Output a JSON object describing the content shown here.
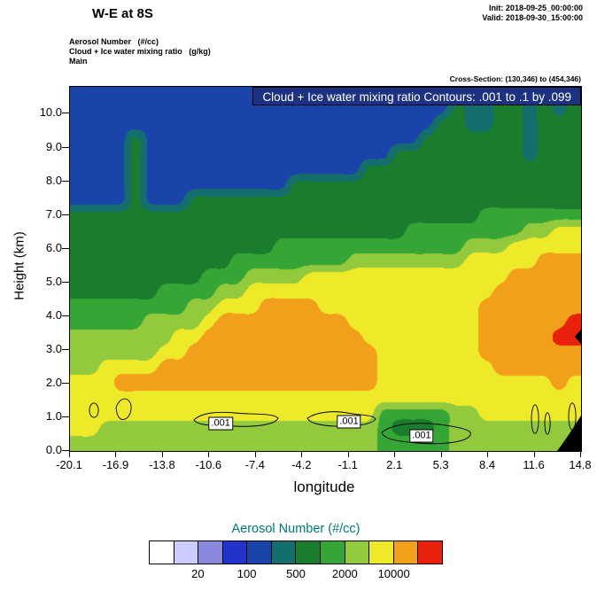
{
  "header": {
    "title": "W-E at 8S",
    "init": "Init: 2018-09-25_00:00:00",
    "valid": "Valid: 2018-09-30_15:00:00",
    "field_lines": [
      "Aerosol Number   (#/cc)",
      "Cloud + Ice water mixing ratio   (g/kg)",
      "Main"
    ],
    "cross_section": "Cross-Section: (130,346) to (454,346)"
  },
  "banner": {
    "text": "Cloud + Ice water mixing ratio Contours: .001 to .1 by .099",
    "bg": "#1e3282",
    "fg": "#ffffff"
  },
  "axes": {
    "ylabel": "Height (km)",
    "xlabel": "longitude",
    "ytick_labels": [
      "0.0",
      "1.0",
      "2.0",
      "3.0",
      "4.0",
      "5.0",
      "6.0",
      "7.0",
      "8.0",
      "9.0",
      "10.0"
    ],
    "xtick_labels": [
      "-20.1",
      "-16.9",
      "-13.8",
      "-10.6",
      "-7.4",
      "-4.2",
      "-1.1",
      "2.1",
      "5.3",
      "8.4",
      "11.6",
      "14.8"
    ]
  },
  "legend": {
    "title": "Aerosol Number  (#/cc)",
    "title_color": "#007878",
    "colors": [
      "#ffffff",
      "#ccccff",
      "#8888dd",
      "#2233cc",
      "#1a44aa",
      "#156e6e",
      "#1a7d2e",
      "#35a535",
      "#93c93c",
      "#eeea2a",
      "#f2a01c",
      "#e8200c"
    ],
    "labels": [
      {
        "text": "20",
        "boundary": 2
      },
      {
        "text": "100",
        "boundary": 4
      },
      {
        "text": "500",
        "boundary": 6
      },
      {
        "text": "2000",
        "boundary": 8
      },
      {
        "text": "10000",
        "boundary": 10
      }
    ]
  },
  "contour_labels": [
    {
      "text": ".001",
      "left_pct": 29.5,
      "top_pct": 92.5
    },
    {
      "text": ".001",
      "left_pct": 54.6,
      "top_pct": 92.0
    },
    {
      "text": ".001",
      "left_pct": 68.8,
      "top_pct": 95.8
    }
  ],
  "chart_data": {
    "type": "filled-contour-cross-section",
    "title": "W-E at 8S",
    "fill_field": "Aerosol Number (#/cc)",
    "line_field": "Cloud + Ice water mixing ratio (g/kg)",
    "line_contour_levels": [
      0.001,
      0.1
    ],
    "colorbar_labeled_values": [
      20,
      100,
      500,
      2000,
      10000
    ],
    "x_axis": {
      "label": "longitude",
      "range": [
        -20.1,
        14.8
      ],
      "ticks": [
        -20.1,
        -16.9,
        -13.8,
        -10.6,
        -7.4,
        -4.2,
        -1.1,
        2.1,
        5.3,
        8.4,
        11.6,
        14.8
      ]
    },
    "y_axis": {
      "label": "Height (km)",
      "range": [
        0,
        10.8
      ],
      "ticks": [
        0,
        1,
        2,
        3,
        4,
        5,
        6,
        7,
        8,
        9,
        10
      ]
    },
    "grid_note": "Coarse 35x24 field of colorbar level indices; rows run top (10.8 km) to bottom (0 km), columns run -20.1 to 14.8 deg longitude. Chars 4..9,A,B map to palette indices 4..11 (navy, teal, dark green, green, light green, yellow, orange, red).",
    "grid_levels": [
      "44444444444444444444444444455665656",
      "44444444444444444444444444655665656",
      "44444444444444444444444446655665666",
      "44446444444444444444444466666665666",
      "44446444444444444444446666666665666",
      "44446444444444444444666666666666666",
      "44446444444444466666666666666666666",
      "44446444666666666666666666666666666",
      "66666666666666666666666666667777777",
      "66666666666666666666666777777778899",
      "66666666666666777777777777788899999",
      "66666666666777777778888888899999AAA",
      "666666666777888899999999999999AAAAA",
      "66666677778899999999999999999AAAAAA",
      "7777777788999AAAA99999999999AAAAAAA",
      "7777788889AAAAAAAAA999999999AAAAAAB",
      "888888899AAAAAAAAAAA99999999AAAAABB",
      "88888899AAAAAAAAAAAAA9999999AAAAAAA",
      "889999AAAAAAAAAAAAAAA99999999AAAAAA",
      "999AAAAAAAAAAAAAAAAAA999999999999A9",
      "99999999999999999999999999999999999",
      "99999999999999999999977777889999999",
      "99888888888888888888876667888888888",
      "88888888888888888888877777888888888"
    ],
    "terrain_polygons": [
      "M550 411 L577 411 L577 371 C569 384 559 399 550 411 Z",
      "M577 274 L570 282 L577 290 Z"
    ],
    "cloud_contour_paths": [
      "M22 365 a5 8 0 1 0 10.1 0 a5 8 0 1 0 -10.1 0",
      "M52 362 c3 -9 10 -13 15 -7 c4 5 2 15 -3 19 c-6 4 -11 0 -12 -12 z",
      "M140 376 c8 -8 26 -10 46 -8 c20 2 44 0 49 6 c-4 8 -28 10 -50 9 c-22 -1 -40 0 -45 -7 z",
      "M268 374 c10 -7 30 -9 45 -6 c15 3 30 2 32 7 c-6 7 -25 8 -42 8 c-17 0 -32 -3 -35 -9 z",
      "M352 390 c12 -10 40 -12 65 -9 c22 3 38 6 35 12 c-5 9 -35 11 -60 9 c-25 -2 -38 -5 -40 -12 z",
      "M521 375 a4 16 0 1 0 8.1 0 a4 16 0 1 0 -8.1 0",
      "M536 380 a3 12 0 1 0 6.1 0 a3 12 0 1 0 -6.1 0",
      "M563 372 a4 15 0 1 0 8.1 0 a4 15 0 1 0 -8.1 0"
    ]
  }
}
